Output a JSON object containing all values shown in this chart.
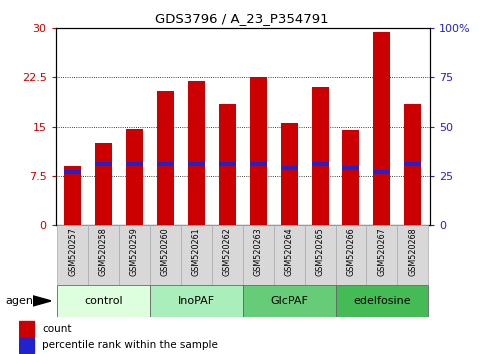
{
  "title": "GDS3796 / A_23_P354791",
  "samples": [
    "GSM520257",
    "GSM520258",
    "GSM520259",
    "GSM520260",
    "GSM520261",
    "GSM520262",
    "GSM520263",
    "GSM520264",
    "GSM520265",
    "GSM520266",
    "GSM520267",
    "GSM520268"
  ],
  "count_values": [
    9.0,
    12.5,
    14.7,
    20.5,
    22.0,
    18.5,
    22.5,
    15.5,
    21.0,
    14.5,
    29.5,
    18.5
  ],
  "percentile_values": [
    27,
    31,
    31,
    31,
    31,
    31,
    31,
    29,
    31,
    29,
    27,
    31
  ],
  "bar_color": "#cc0000",
  "percentile_color": "#2222cc",
  "groups": [
    {
      "label": "control",
      "start": 0,
      "end": 3,
      "color": "#ddffdd"
    },
    {
      "label": "InoPAF",
      "start": 3,
      "end": 6,
      "color": "#aaeebb"
    },
    {
      "label": "GlcPAF",
      "start": 6,
      "end": 9,
      "color": "#66cc77"
    },
    {
      "label": "edelfosine",
      "start": 9,
      "end": 12,
      "color": "#44bb55"
    }
  ],
  "ylim_left": [
    0,
    30
  ],
  "ylim_right": [
    0,
    100
  ],
  "yticks_left": [
    0,
    7.5,
    15,
    22.5,
    30
  ],
  "yticks_right": [
    0,
    25,
    50,
    75,
    100
  ],
  "ytick_labels_left": [
    "0",
    "7.5",
    "15",
    "22.5",
    "30"
  ],
  "ytick_labels_right": [
    "0",
    "25",
    "50",
    "75",
    "100%"
  ],
  "left_tick_color": "#cc0000",
  "right_tick_color": "#2222cc",
  "plot_bg_color": "#ffffff",
  "bar_width": 0.55
}
